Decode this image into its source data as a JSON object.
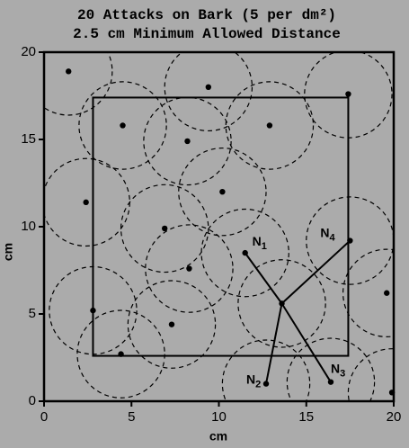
{
  "chart_data": {
    "type": "scatter",
    "title": "20 Attacks on Bark (5 per dm²)",
    "subtitle": "2.5 cm Minimum Allowed Distance",
    "x_label": "cm",
    "y_label": "cm",
    "xlim": [
      0,
      20
    ],
    "ylim": [
      0,
      20
    ],
    "xticks": [
      0,
      5,
      10,
      15,
      20
    ],
    "yticks": [
      0,
      5,
      10,
      15,
      20
    ],
    "circle_radius": 2.5,
    "inner_box": {
      "x": [
        2.8,
        17.4
      ],
      "y": [
        2.6,
        17.4
      ]
    },
    "series": [
      {
        "color": "#000000",
        "x": [
          1.4,
          9.4,
          17.4,
          4.5,
          12.9,
          8.2,
          10.2,
          2.4,
          6.9,
          17.5,
          11.5,
          8.3,
          13.6,
          19.6,
          2.8,
          7.3,
          4.4,
          12.7,
          16.4,
          19.9
        ],
        "values": [
          18.9,
          18.0,
          17.6,
          15.8,
          15.8,
          14.9,
          12.0,
          11.4,
          9.9,
          9.2,
          8.5,
          7.6,
          5.6,
          6.2,
          5.2,
          4.4,
          2.7,
          1.0,
          1.1,
          0.5
        ]
      }
    ],
    "center_point": 12,
    "neighbors": [
      {
        "text": "N",
        "sub": "1",
        "point": 10
      },
      {
        "text": "N",
        "sub": "2",
        "point": 17
      },
      {
        "text": "N",
        "sub": "3",
        "point": 18
      },
      {
        "text": "N",
        "sub": "4",
        "point": 9
      }
    ]
  }
}
